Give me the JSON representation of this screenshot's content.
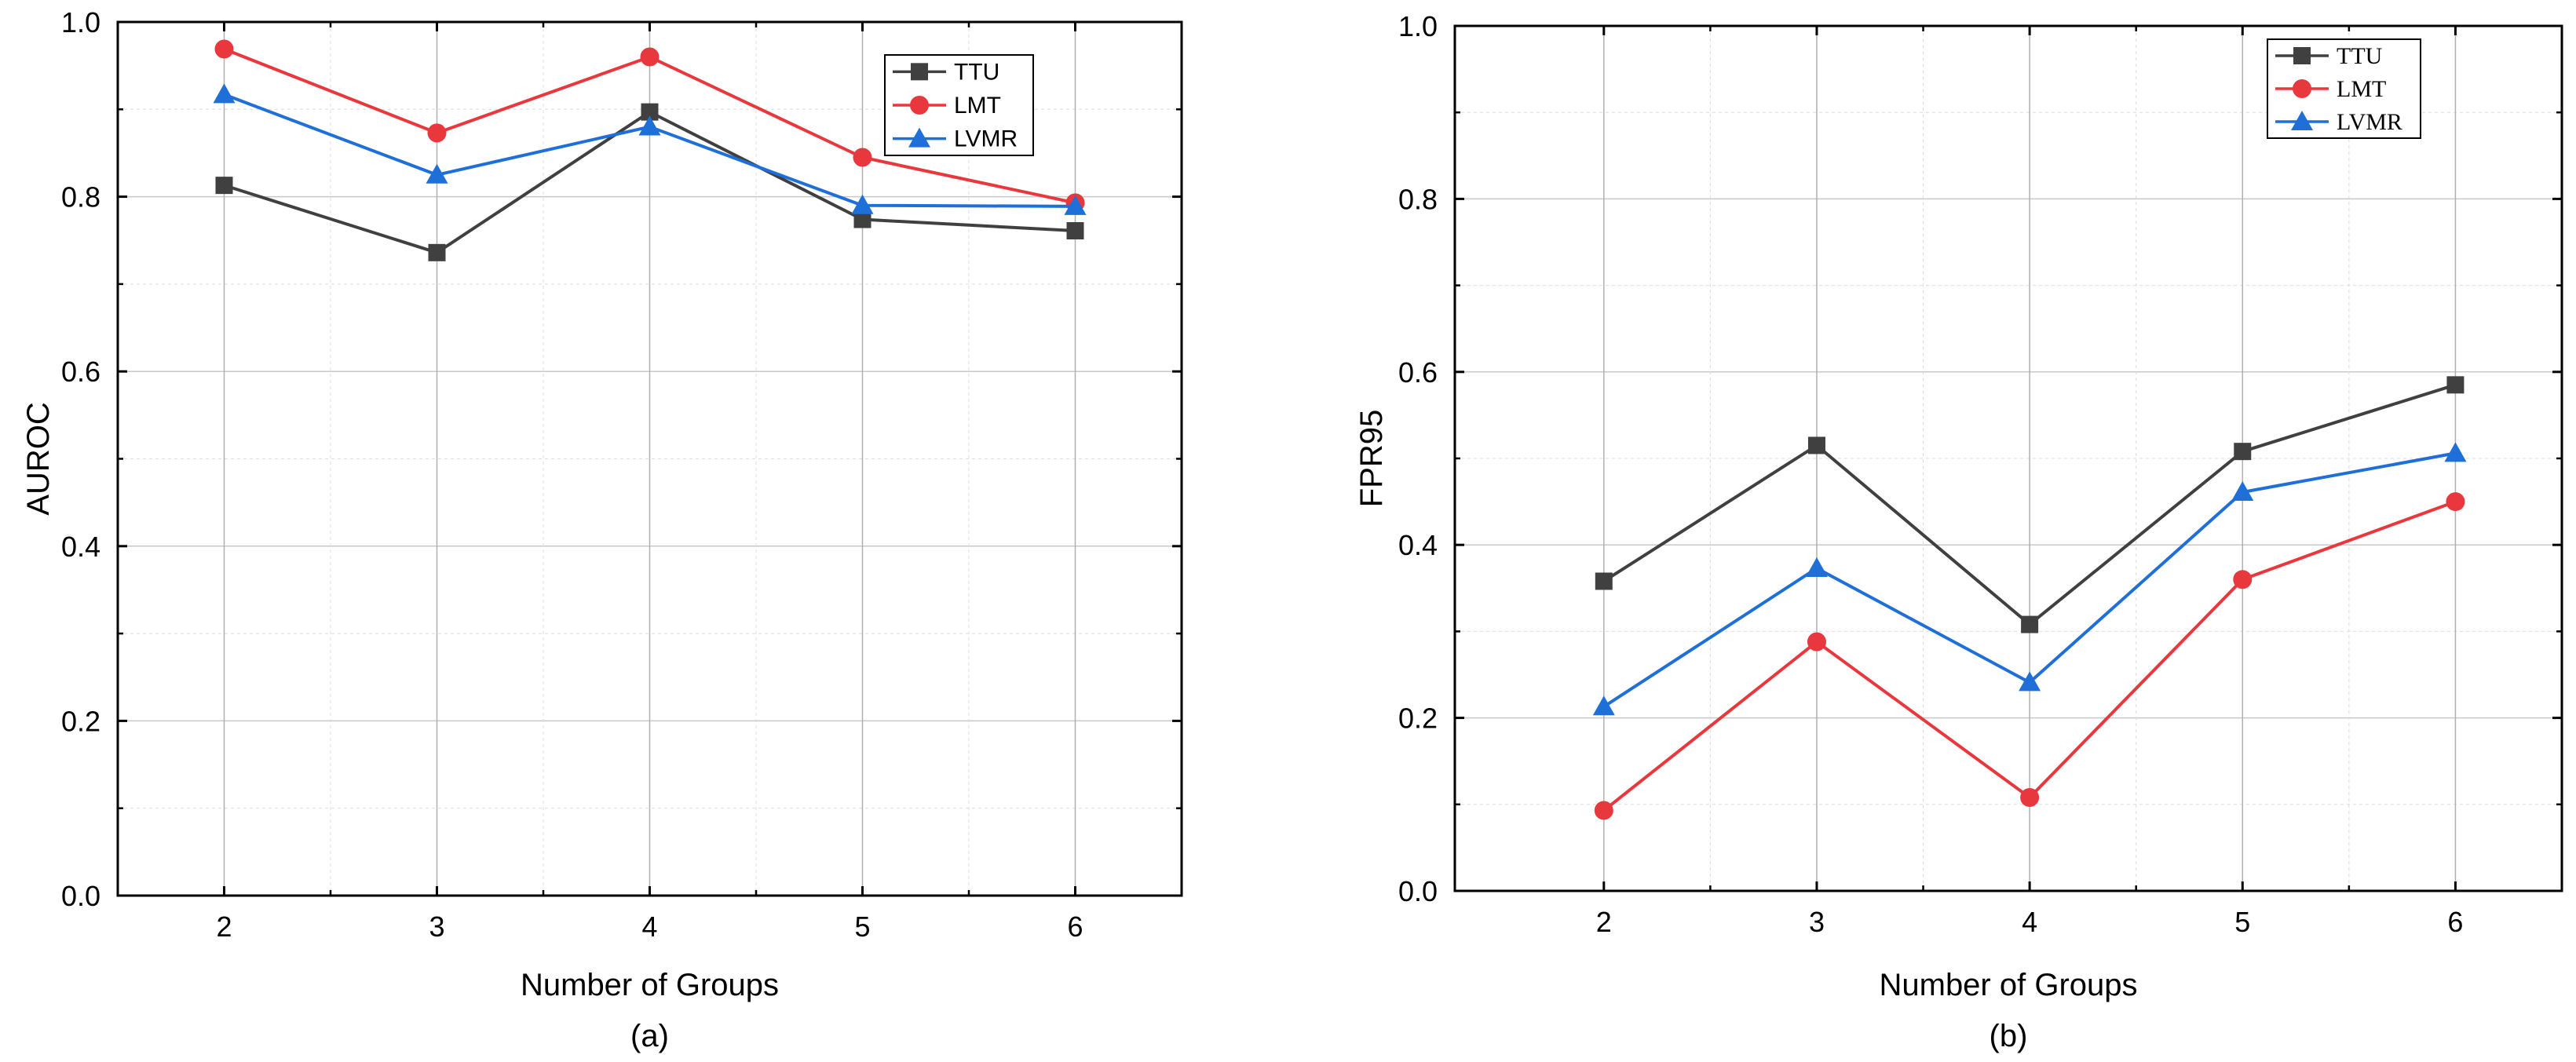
{
  "chart_data": [
    {
      "type": "line",
      "title": "",
      "caption": "(a)",
      "xlabel": "Number of Groups",
      "ylabel": "AUROC",
      "x": [
        2,
        3,
        4,
        5,
        6
      ],
      "x_ticks": [
        "2",
        "3",
        "4",
        "5",
        "6"
      ],
      "y_ticks": [
        "0.0",
        "0.2",
        "0.4",
        "0.6",
        "0.8",
        "1.0"
      ],
      "xlim": [
        1.5,
        6.5
      ],
      "ylim": [
        0,
        1.0
      ],
      "grid": true,
      "legend_position": "top-right",
      "series": [
        {
          "name": "TTU",
          "color": "#404040",
          "marker": "square",
          "values": [
            0.813,
            0.736,
            0.897,
            0.774,
            0.761
          ]
        },
        {
          "name": "LMT",
          "color": "#e8383d",
          "marker": "circle",
          "values": [
            0.969,
            0.873,
            0.96,
            0.845,
            0.793
          ]
        },
        {
          "name": "LVMR",
          "color": "#1f6fd8",
          "marker": "triangle",
          "values": [
            0.917,
            0.825,
            0.88,
            0.79,
            0.789
          ]
        }
      ]
    },
    {
      "type": "line",
      "title": "",
      "caption": "(b)",
      "xlabel": "Number of Groups",
      "ylabel": "FPR95",
      "x": [
        2,
        3,
        4,
        5,
        6
      ],
      "x_ticks": [
        "2",
        "3",
        "4",
        "5",
        "6"
      ],
      "y_ticks": [
        "0.0",
        "0.2",
        "0.4",
        "0.6",
        "0.8",
        "1.0"
      ],
      "xlim": [
        1.3,
        6.5
      ],
      "ylim": [
        0,
        1.0
      ],
      "grid": true,
      "legend_position": "top-right",
      "series": [
        {
          "name": "TTU",
          "color": "#404040",
          "marker": "square",
          "values": [
            0.358,
            0.515,
            0.308,
            0.508,
            0.585
          ]
        },
        {
          "name": "LMT",
          "color": "#e8383d",
          "marker": "circle",
          "values": [
            0.093,
            0.288,
            0.108,
            0.36,
            0.45
          ]
        },
        {
          "name": "LVMR",
          "color": "#1f6fd8",
          "marker": "triangle",
          "values": [
            0.213,
            0.373,
            0.241,
            0.461,
            0.506
          ]
        }
      ]
    }
  ]
}
